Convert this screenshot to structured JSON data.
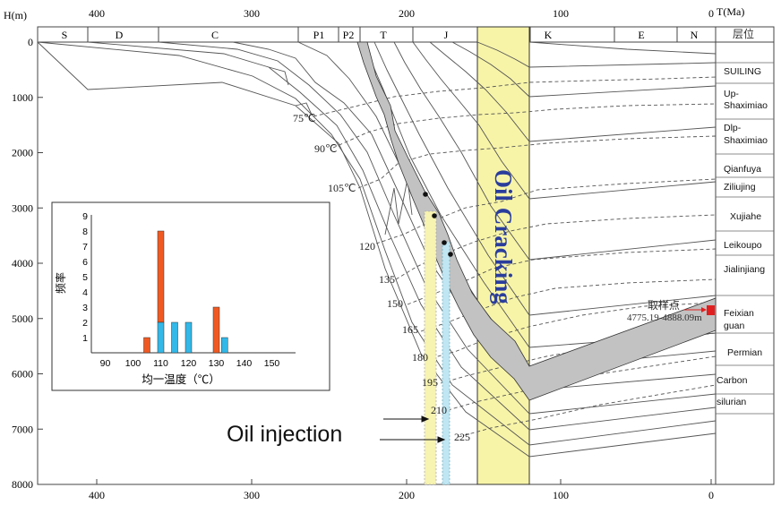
{
  "axes": {
    "y_label": "H(m)",
    "x_label": "T(Ma)",
    "depth_ticks": [
      "0",
      "1000",
      "2000",
      "3000",
      "4000",
      "5000",
      "6000",
      "7000",
      "8000"
    ],
    "age_ticks": [
      "400",
      "300",
      "200",
      "100",
      "0"
    ]
  },
  "periods": [
    "S",
    "D",
    "C",
    "P1",
    "P2",
    "T",
    "J",
    "K",
    "E",
    "N"
  ],
  "strata_header": "层位",
  "strata": [
    "SUILING",
    "Up-Shaximiao",
    "Dlp-Shaximiao",
    "Qianfuya",
    "Ziliujing",
    "Xujiahe",
    "Leikoupo",
    "Jialinjiang",
    "Feixian guan",
    "Permian",
    "Carbon",
    "silurian"
  ],
  "isotherms": [
    "75℃",
    "90℃",
    "105℃",
    "120",
    "135",
    "150",
    "165",
    "180",
    "195",
    "210",
    "225"
  ],
  "oil_cracking_label": "Oil Cracking",
  "oil_injection_label": "Oil injection",
  "sample": {
    "label": "取样点",
    "depth_range": "4775.19-4888.09m",
    "color": "#e02020"
  },
  "histogram": {
    "type": "bar",
    "y_label": "频率",
    "x_label": "均一温度（℃）",
    "x_ticks": [
      "90",
      "100",
      "110",
      "120",
      "130",
      "140",
      "150"
    ],
    "y_ticks": [
      "1",
      "2",
      "3",
      "4",
      "5",
      "6",
      "7",
      "8",
      "9"
    ],
    "series_colors": {
      "orange": "#f05a22",
      "blue": "#33b8e8"
    },
    "bars": [
      {
        "x": 105,
        "orange": 1,
        "blue": 0
      },
      {
        "x": 110,
        "orange": 6,
        "blue": 2
      },
      {
        "x": 115,
        "orange": 0,
        "blue": 2
      },
      {
        "x": 120,
        "orange": 0,
        "blue": 2
      },
      {
        "x": 130,
        "orange": 3,
        "blue": 0
      },
      {
        "x": 133,
        "orange": 0,
        "blue": 1
      }
    ]
  },
  "colors": {
    "oil_window_band": "#f7f4a8",
    "burial_band": "#c2c2c2",
    "yellow_strip": "#f7f3b0",
    "blue_strip": "#bfe6f2"
  }
}
